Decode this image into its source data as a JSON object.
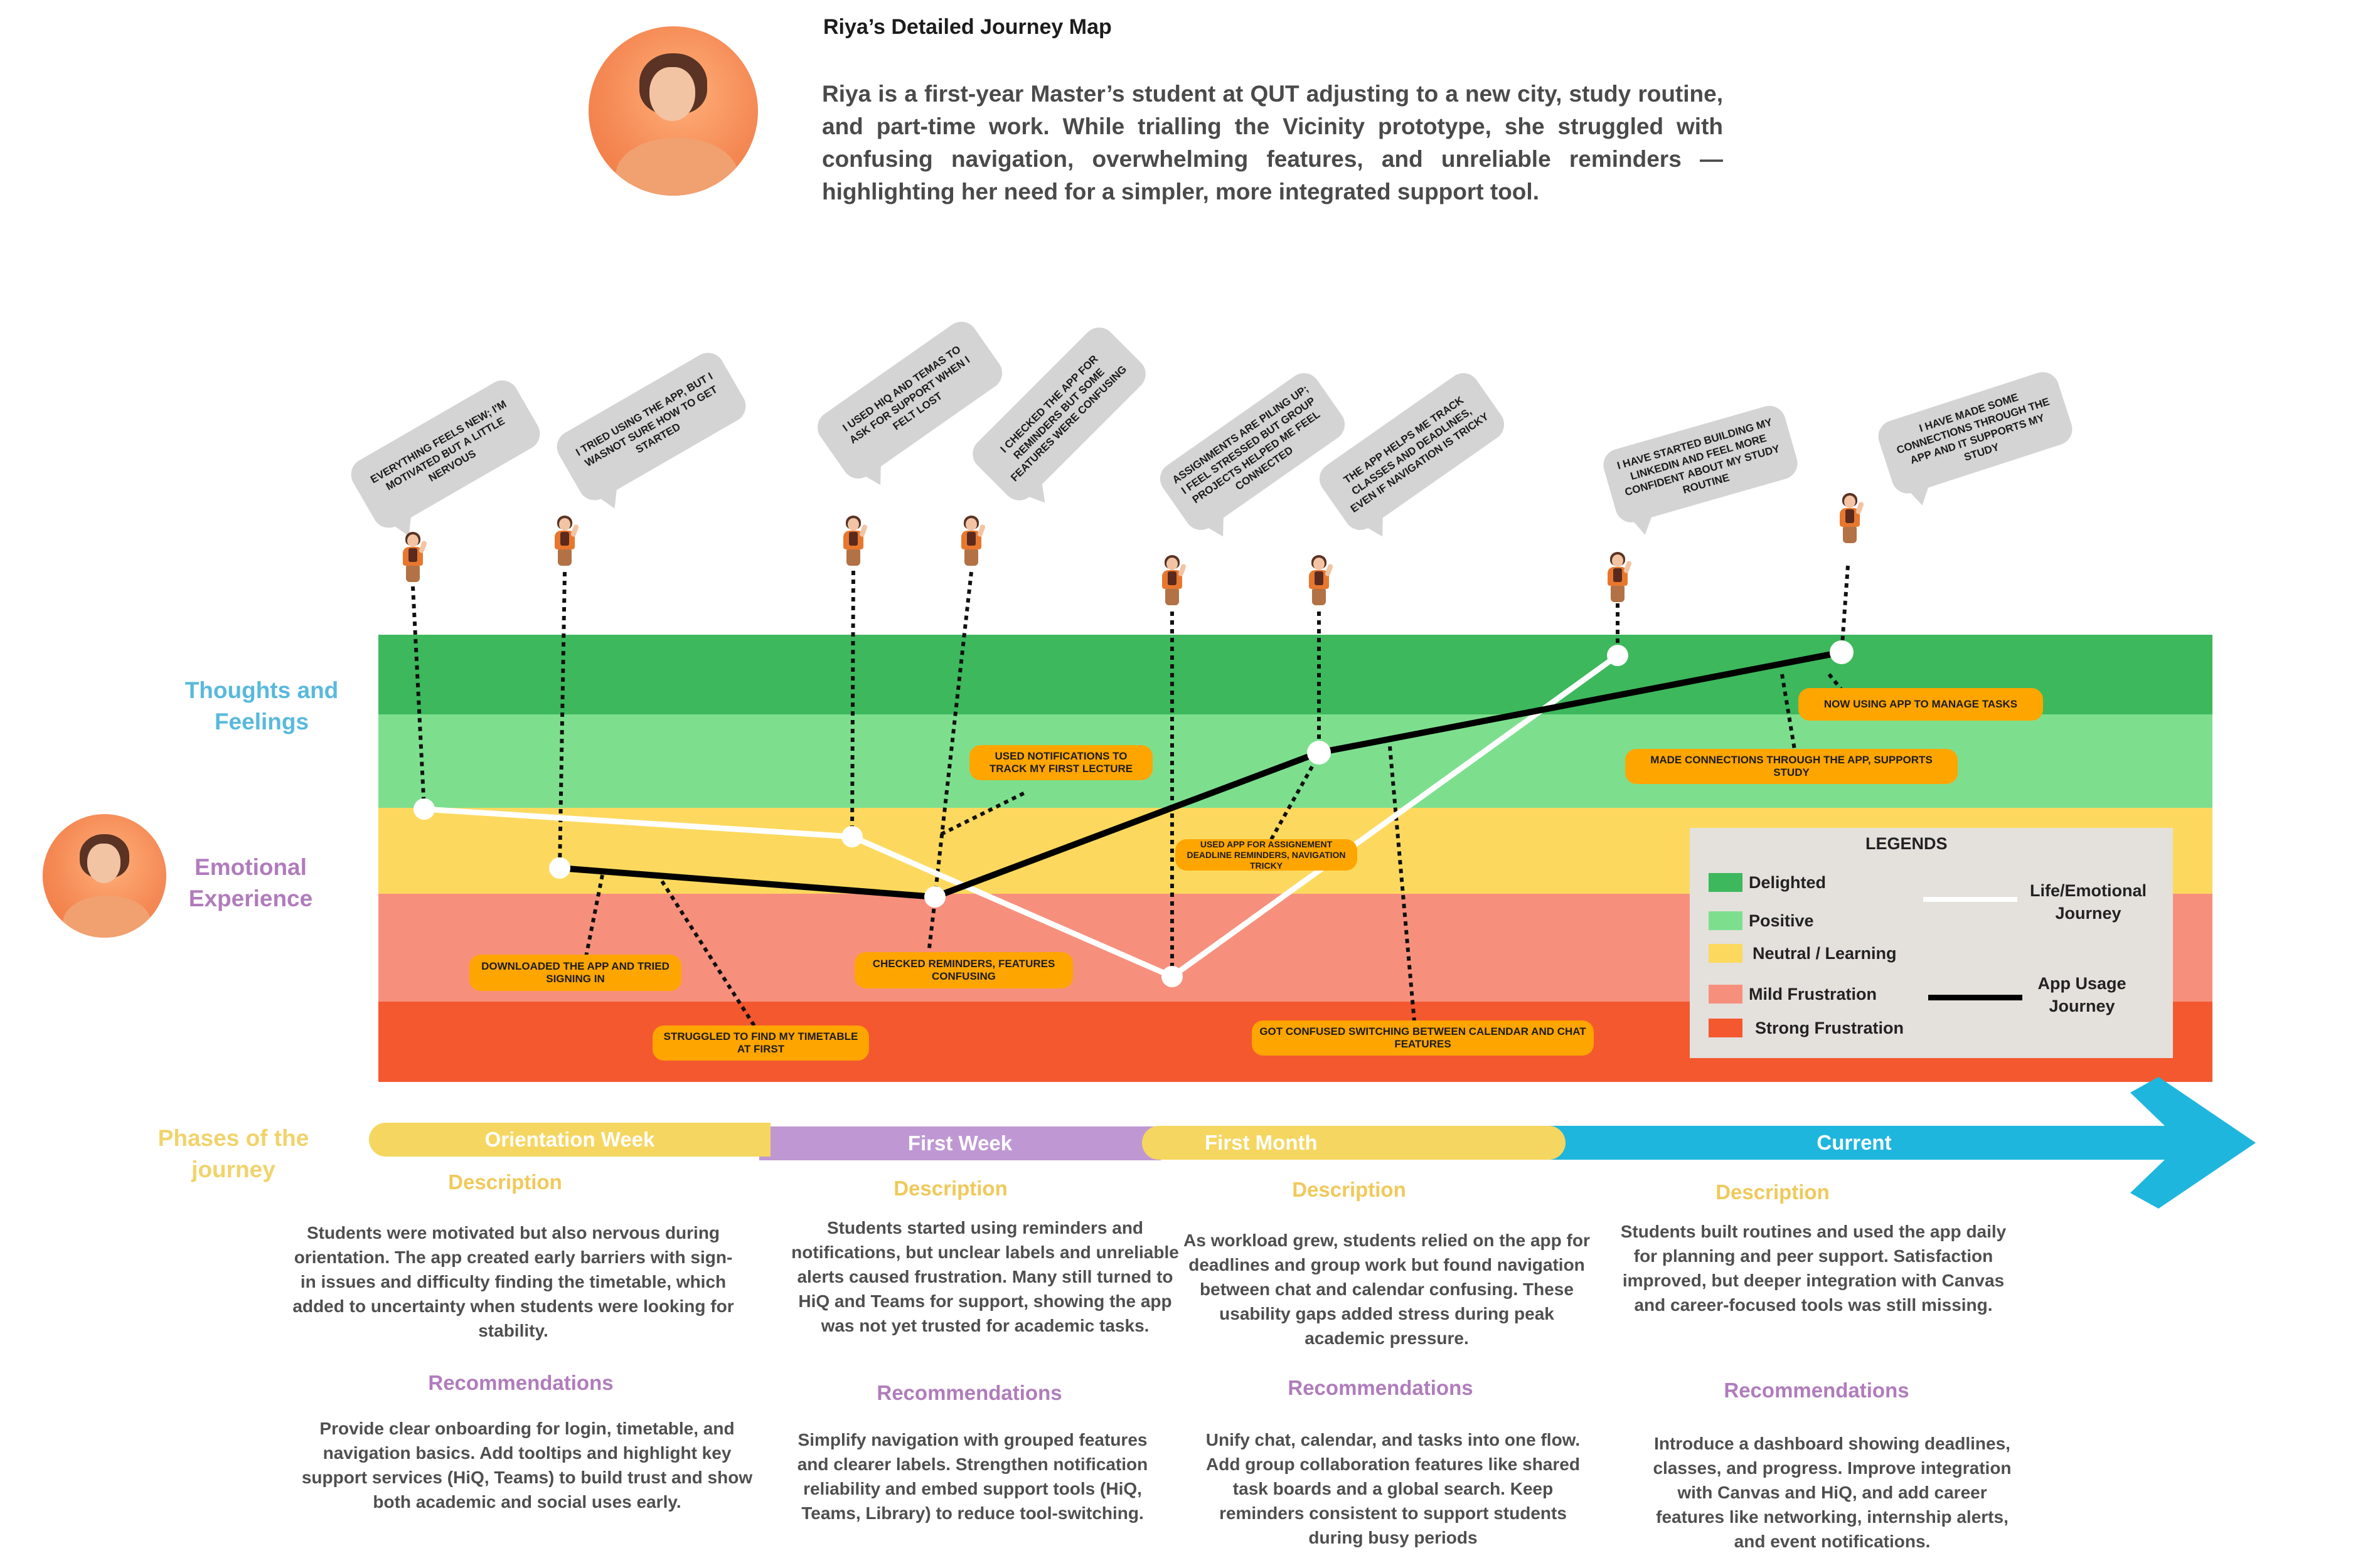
{
  "title": "Riya’s Detailed Journey Map",
  "persona_description": "Riya is a first-year Master’s student at QUT adjusting to a new city, study routine, and part-time work. While trialling the Vicinity prototype, she struggled with confusing navigation, overwhelming features, and unreliable reminders — highlighting her need for a simpler, more integrated support tool.",
  "side_labels": {
    "thoughts": "Thoughts and Feelings",
    "emotional": "Emotional Experience",
    "phases": "Phases of the journey"
  },
  "thoughts": [
    "EVERYTHING FEELS NEW; I'M MOTIVATED BUT A LITTLE NERVOUS",
    "I TRIED USING THE APP, BUT I WASNOT SURE HOW TO GET STARTED",
    "I USED HIQ AND TEMAS TO ASK FOR SUPPORT WHEN I FELT LOST",
    "I CHECKED THE APP FOR REMINDERS BUT SOME FEATURES WERE CONFUSING",
    "ASSIGNMENTS ARE PILING UP; I FEEL STRESSED BUT GROUP PROJECTS HELPED ME FEEL CONNECTED",
    "THE APP HELPS ME TRACK CLASSES AND DEADLINES, EVEN IF NAVIGATION IS TRICKY",
    "I HAVE STARTED BUILDING MY LINKEDIN AND FEEL MORE CONFIDENT ABOUT MY STUDY ROUTINE",
    "I HAVE MADE SOME CONNECTIONS THROUGH THE APP AND IT SUPPORTS MY STUDY"
  ],
  "callouts": [
    "DOWNLOADED THE APP AND TRIED SIGNING IN",
    "STRUGGLED TO FIND MY TIMETABLE AT FIRST",
    "USED NOTIFICATIONS TO TRACK MY FIRST LECTURE",
    "CHECKED REMINDERS, FEATURES CONFUSING",
    "USED APP FOR ASSIGNEMENT DEADLINE REMINDERS, NAVIGATION TRICKY",
    "GOT CONFUSED SWITCHING BETWEEN CALENDAR AND CHAT FEATURES",
    "MADE CONNECTIONS THROUGH THE APP, SUPPORTS STUDY",
    "NOW USING APP TO MANAGE TASKS"
  ],
  "legend": {
    "title": "LEGENDS",
    "levels": [
      "Delighted",
      "Positive",
      "Neutral / Learning",
      "Mild Frustration",
      "Strong Frustration"
    ],
    "life_line": "Life/Emotional Journey",
    "app_line": "App Usage Journey"
  },
  "colors": {
    "delighted": "#3db85c",
    "positive": "#7ddf8e",
    "neutral": "#fcd95e",
    "mild": "#f6907d",
    "strong": "#f4582f",
    "callout": "#ffa500",
    "bubble": "#d4d4d4",
    "phase_orientation": "#f5d660",
    "phase_first_week": "#bf98d3",
    "phase_first_month": "#f5d660",
    "phase_current": "#1fb6dd"
  },
  "phases": [
    {
      "name": "Orientation Week",
      "description_title": "Description",
      "description": "Students were motivated but also nervous during orientation. The app created early barriers with sign-in issues and difficulty finding the timetable, which added to uncertainty when students were looking for stability.",
      "recommendations_title": "Recommendations",
      "recommendations": "Provide clear onboarding for login, timetable, and navigation basics. Add tooltips and highlight key support services (HiQ, Teams) to build trust and show both academic and social uses early."
    },
    {
      "name": "First Week",
      "description_title": "Description",
      "description": "Students started using reminders and notifications, but unclear labels and unreliable alerts caused frustration. Many still turned to HiQ and Teams for support, showing the app was not yet trusted for academic tasks.",
      "recommendations_title": "Recommendations",
      "recommendations": "Simplify navigation with grouped features and clearer labels. Strengthen notification reliability and embed support tools (HiQ, Teams, Library) to reduce tool-switching."
    },
    {
      "name": "First Month",
      "description_title": "Description",
      "description": "As workload grew, students relied on the app for deadlines and group work but found navigation between chat and calendar confusing. These usability gaps added stress during peak academic pressure.",
      "recommendations_title": "Recommendations",
      "recommendations": "Unify chat, calendar, and tasks into one flow. Add group collaboration features like shared task boards and a global search. Keep reminders consistent to support students during busy periods"
    },
    {
      "name": "Current",
      "description_title": "Description",
      "description": "Students built routines and used the app daily for planning and peer support. Satisfaction improved, but deeper integration with Canvas and career-focused tools was still missing.",
      "recommendations_title": "Recommendations",
      "recommendations": "Introduce a dashboard showing deadlines, classes, and progress. Improve integration with Canvas and HiQ, and add career features like networking, internship alerts, and event notifications."
    }
  ]
}
